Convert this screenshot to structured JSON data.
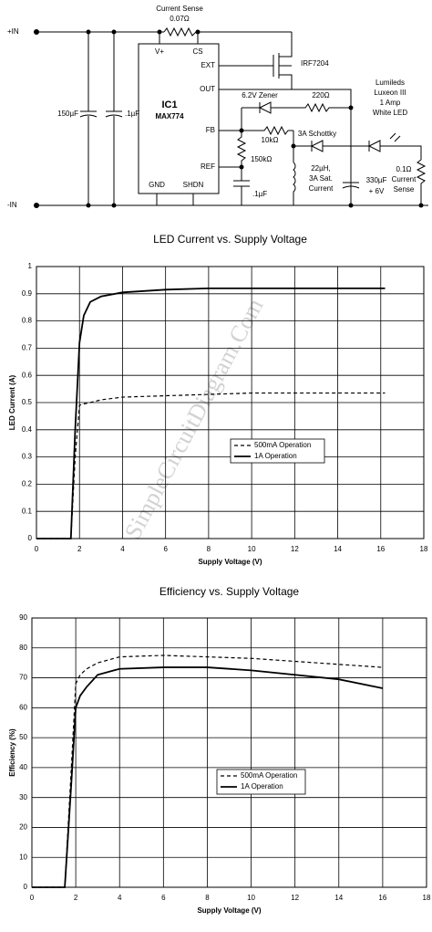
{
  "schematic": {
    "input_pos": "+IN",
    "input_neg": "-IN",
    "sense_label": "Current Sense",
    "sense_value": "0.07Ω",
    "pin_vplus": "V+",
    "pin_cs": "CS",
    "pin_ext": "EXT",
    "pin_out": "OUT",
    "pin_fb": "FB",
    "pin_ref": "REF",
    "pin_gnd": "GND",
    "pin_shdn": "SHDN",
    "ic_name": "IC1",
    "ic_part": "MAX774",
    "fet": "IRF7204",
    "cap_in": "150µF",
    "cap_in2": ".1µF",
    "zener": "6.2V Zener",
    "r220": "220Ω",
    "r10k": "10kΩ",
    "r150k": "150kΩ",
    "cap_ref": ".1µF",
    "schottky": "3A Schottky",
    "inductor": [
      "22µH,",
      "3A Sat.",
      "Current"
    ],
    "cap_out": [
      "330µF",
      "+ 6V"
    ],
    "led": [
      "Lumileds",
      "Luxeon III",
      "1 Amp",
      "White LED"
    ],
    "r_sense": [
      "0.1Ω",
      "Current",
      "Sense"
    ]
  },
  "chart_data": [
    {
      "type": "line",
      "title": "LED Current vs. Supply Voltage",
      "x_label": "Supply Voltage (V)",
      "y_label": "LED Current (A)",
      "watermark": "SimpleCircuitDiagram.Com",
      "x": [
        0,
        1.6,
        1.8,
        2,
        2.2,
        2.5,
        3,
        4,
        6,
        8,
        10,
        12,
        14,
        16.2
      ],
      "series": [
        {
          "name": "500mA Operation",
          "color": "#000000",
          "dashed": true,
          "values": [
            0,
            0,
            0.3,
            0.49,
            0.495,
            0.5,
            0.51,
            0.52,
            0.525,
            0.53,
            0.535,
            0.535,
            0.535,
            0.535
          ]
        },
        {
          "name": "1A Operation",
          "color": "#000000",
          "dashed": false,
          "values": [
            0,
            0,
            0.4,
            0.72,
            0.82,
            0.87,
            0.89,
            0.905,
            0.915,
            0.92,
            0.92,
            0.92,
            0.92,
            0.92
          ]
        }
      ],
      "xlim": [
        0,
        18
      ],
      "xticks": [
        0,
        2,
        4,
        6,
        8,
        10,
        12,
        14,
        16,
        18
      ],
      "ylim": [
        0,
        1
      ],
      "yticks": [
        0,
        0.1,
        0.2,
        0.3,
        0.4,
        0.5,
        0.6,
        0.7,
        0.8,
        0.9,
        1
      ],
      "grid": true
    },
    {
      "type": "line",
      "title": "Efficiency vs. Supply Voltage",
      "x_label": "Supply Voltage (V)",
      "y_label": "Efficiency (%)",
      "x": [
        0,
        1.5,
        1.8,
        2,
        2.2,
        2.5,
        3,
        4,
        6,
        8,
        10,
        12,
        14,
        16
      ],
      "series": [
        {
          "name": "500mA Operation",
          "color": "#000000",
          "dashed": true,
          "values": [
            0,
            0,
            40,
            68,
            71,
            73,
            75,
            77,
            77.5,
            77,
            76.5,
            75.5,
            74.5,
            73.5
          ]
        },
        {
          "name": "1A Operation",
          "color": "#000000",
          "dashed": false,
          "values": [
            0,
            0,
            35,
            60,
            64,
            67,
            71,
            73,
            73.5,
            73.5,
            72.5,
            71,
            69.5,
            66.5
          ]
        }
      ],
      "xlim": [
        0,
        18
      ],
      "xticks": [
        0,
        2,
        4,
        6,
        8,
        10,
        12,
        14,
        16,
        18
      ],
      "ylim": [
        0,
        90
      ],
      "yticks": [
        0,
        10,
        20,
        30,
        40,
        50,
        60,
        70,
        80,
        90
      ],
      "grid": true
    }
  ]
}
